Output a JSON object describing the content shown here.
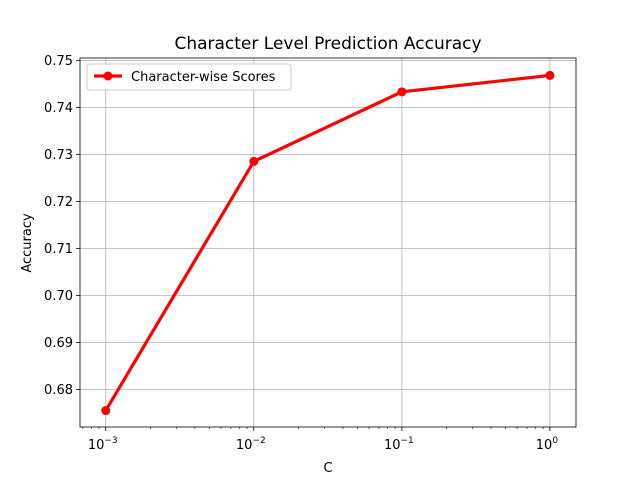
{
  "chart_data": {
    "type": "line",
    "title": "Character Level Prediction Accuracy",
    "xlabel": "C",
    "ylabel": "Accuracy",
    "xscale": "log",
    "x": [
      0.001,
      0.01,
      0.1,
      1
    ],
    "x_ticks": [
      {
        "value": 0.001,
        "base": "10",
        "exp": "−3"
      },
      {
        "value": 0.01,
        "base": "10",
        "exp": "−2"
      },
      {
        "value": 0.1,
        "base": "10",
        "exp": "−1"
      },
      {
        "value": 1,
        "base": "10",
        "exp": "0"
      }
    ],
    "xlim": [
      0.00067,
      1.5
    ],
    "ylim": [
      0.672,
      0.7505
    ],
    "y_ticks": [
      "0.68",
      "0.69",
      "0.70",
      "0.71",
      "0.72",
      "0.73",
      "0.74",
      "0.75"
    ],
    "grid": true,
    "legend_position": "upper-left",
    "series": [
      {
        "name": "Character-wise Scores",
        "color": "#ff0000",
        "marker": "circle",
        "values": [
          0.6755,
          0.7285,
          0.7433,
          0.7468
        ]
      }
    ]
  }
}
